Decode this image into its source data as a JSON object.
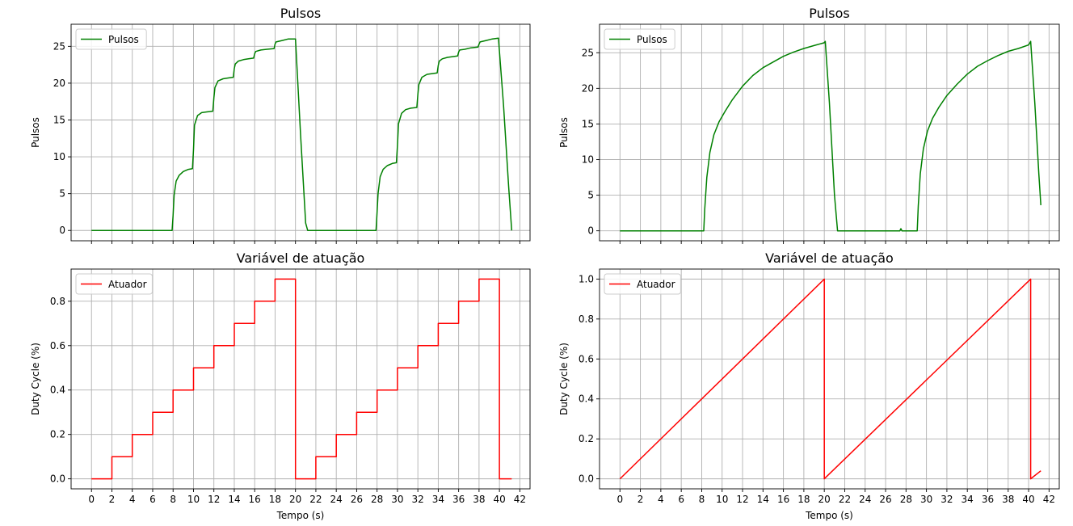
{
  "chart_data": [
    {
      "type": "line",
      "title": "Pulsos",
      "xlabel": "",
      "ylabel": "Pulsos",
      "xlim": [
        -2,
        43
      ],
      "ylim": [
        -1.4,
        28
      ],
      "xticks": [
        0,
        2,
        4,
        6,
        8,
        10,
        12,
        14,
        16,
        18,
        20,
        22,
        24,
        26,
        28,
        30,
        32,
        34,
        36,
        38,
        40,
        42
      ],
      "yticks": [
        0,
        5,
        10,
        15,
        20,
        25
      ],
      "show_xtick_labels": false,
      "grid": true,
      "legend": "upper-left",
      "series": [
        {
          "name": "Pulsos",
          "color": "#008000",
          "x": [
            0,
            7.9,
            8.0,
            8.1,
            8.3,
            8.6,
            9.0,
            9.5,
            9.9,
            10.0,
            10.1,
            10.4,
            10.8,
            11.3,
            11.9,
            12.0,
            12.1,
            12.4,
            12.9,
            13.4,
            13.9,
            14.0,
            14.1,
            14.4,
            14.9,
            15.4,
            15.9,
            16.0,
            16.1,
            16.6,
            17.2,
            17.9,
            18.0,
            18.1,
            18.7,
            19.3,
            20.0,
            20.5,
            21.0,
            21.2,
            27.9,
            28.0,
            28.1,
            28.3,
            28.6,
            29.0,
            29.5,
            29.9,
            30.0,
            30.1,
            30.4,
            30.8,
            31.3,
            31.9,
            32.0,
            32.1,
            32.4,
            32.9,
            33.4,
            33.9,
            34.0,
            34.1,
            34.4,
            34.9,
            35.4,
            35.9,
            36.0,
            36.1,
            36.6,
            37.2,
            37.9,
            38.0,
            38.1,
            38.7,
            39.3,
            39.9,
            40.4,
            40.9,
            41.2
          ],
          "y": [
            0,
            0,
            2.0,
            4.8,
            6.7,
            7.5,
            8.0,
            8.3,
            8.4,
            11.0,
            14.3,
            15.6,
            16.0,
            16.1,
            16.2,
            18.0,
            19.4,
            20.3,
            20.6,
            20.7,
            20.8,
            22.0,
            22.6,
            23.0,
            23.2,
            23.3,
            23.4,
            24.0,
            24.3,
            24.5,
            24.6,
            24.7,
            25.3,
            25.6,
            25.8,
            26.0,
            26.0,
            13.0,
            1.0,
            0,
            0,
            2.5,
            5.0,
            7.3,
            8.3,
            8.8,
            9.1,
            9.2,
            11.5,
            14.5,
            15.9,
            16.4,
            16.6,
            16.7,
            18.5,
            19.8,
            20.8,
            21.2,
            21.3,
            21.4,
            22.4,
            23.0,
            23.3,
            23.5,
            23.6,
            23.7,
            24.2,
            24.5,
            24.6,
            24.8,
            24.9,
            25.3,
            25.6,
            25.8,
            26.0,
            26.1,
            17.0,
            6.0,
            0
          ]
        }
      ]
    },
    {
      "type": "line",
      "title": "Pulsos",
      "xlabel": "",
      "ylabel": "Pulsos",
      "xlim": [
        -2,
        43
      ],
      "ylim": [
        -1.4,
        29
      ],
      "xticks": [
        0,
        2,
        4,
        6,
        8,
        10,
        12,
        14,
        16,
        18,
        20,
        22,
        24,
        26,
        28,
        30,
        32,
        34,
        36,
        38,
        40,
        42
      ],
      "yticks": [
        0,
        5,
        10,
        15,
        20,
        25
      ],
      "show_xtick_labels": false,
      "grid": true,
      "legend": "upper-left",
      "series": [
        {
          "name": "Pulsos",
          "color": "#008000",
          "x": [
            0,
            8.2,
            8.3,
            8.5,
            8.8,
            9.2,
            9.7,
            10.3,
            11.0,
            12.0,
            13.0,
            14.0,
            15.0,
            16.0,
            17.0,
            18.0,
            19.0,
            20.0,
            20.1,
            20.5,
            21.0,
            21.3,
            27.4,
            27.5,
            27.6,
            29.1,
            29.2,
            29.4,
            29.7,
            30.1,
            30.6,
            31.2,
            32.0,
            33.0,
            34.0,
            35.0,
            36.0,
            37.0,
            38.0,
            39.0,
            40.0,
            40.2,
            40.6,
            41.0,
            41.2
          ],
          "y": [
            0,
            0,
            3.0,
            7.5,
            11.0,
            13.5,
            15.3,
            16.8,
            18.4,
            20.3,
            21.8,
            22.9,
            23.7,
            24.5,
            25.1,
            25.6,
            26.0,
            26.4,
            26.6,
            18.0,
            5.0,
            0,
            0,
            0.3,
            0,
            0,
            3.5,
            8.0,
            11.5,
            14.0,
            15.8,
            17.3,
            19.0,
            20.6,
            22.0,
            23.1,
            23.9,
            24.6,
            25.2,
            25.6,
            26.1,
            26.6,
            18.0,
            8.0,
            3.6
          ]
        }
      ]
    },
    {
      "type": "line",
      "title": "Variável de atuação",
      "xlabel": "Tempo (s)",
      "ylabel": "Duty Cycle (%)",
      "xlim": [
        -2,
        43
      ],
      "ylim": [
        -0.045,
        0.945
      ],
      "xticks": [
        0,
        2,
        4,
        6,
        8,
        10,
        12,
        14,
        16,
        18,
        20,
        22,
        24,
        26,
        28,
        30,
        32,
        34,
        36,
        38,
        40,
        42
      ],
      "yticks": [
        0.0,
        0.2,
        0.4,
        0.6,
        0.8
      ],
      "ytick_labels": [
        "0.0",
        "0.2",
        "0.4",
        "0.6",
        "0.8"
      ],
      "xtick_labels": [
        "0",
        "2",
        "4",
        "6",
        "8",
        "10",
        "12",
        "14",
        "16",
        "18",
        "20",
        "22",
        "24",
        "26",
        "28",
        "30",
        "32",
        "34",
        "36",
        "38",
        "40",
        "42"
      ],
      "show_xtick_labels": true,
      "grid": true,
      "legend": "upper-left",
      "series": [
        {
          "name": "Atuador",
          "color": "#ff0000",
          "x": [
            0,
            2,
            2,
            4,
            4,
            6,
            6,
            8,
            8,
            10,
            10,
            12,
            12,
            14,
            14,
            16,
            16,
            18,
            18,
            20,
            20,
            22,
            22,
            24,
            24,
            26,
            26,
            28,
            28,
            30,
            30,
            32,
            32,
            34,
            34,
            36,
            36,
            38,
            38,
            40,
            40,
            41.2
          ],
          "y": [
            0,
            0,
            0.1,
            0.1,
            0.2,
            0.2,
            0.3,
            0.3,
            0.4,
            0.4,
            0.5,
            0.5,
            0.6,
            0.6,
            0.7,
            0.7,
            0.8,
            0.8,
            0.9,
            0.9,
            0,
            0,
            0.1,
            0.1,
            0.2,
            0.2,
            0.3,
            0.3,
            0.4,
            0.4,
            0.5,
            0.5,
            0.6,
            0.6,
            0.7,
            0.7,
            0.8,
            0.8,
            0.9,
            0.9,
            0,
            0
          ]
        }
      ]
    },
    {
      "type": "line",
      "title": "Variável de atuação",
      "xlabel": "Tempo (s)",
      "ylabel": "Duty Cycle (%)",
      "xlim": [
        -2,
        43
      ],
      "ylim": [
        -0.05,
        1.05
      ],
      "xticks": [
        0,
        2,
        4,
        6,
        8,
        10,
        12,
        14,
        16,
        18,
        20,
        22,
        24,
        26,
        28,
        30,
        32,
        34,
        36,
        38,
        40,
        42
      ],
      "yticks": [
        0.0,
        0.2,
        0.4,
        0.6,
        0.8,
        1.0
      ],
      "ytick_labels": [
        "0.0",
        "0.2",
        "0.4",
        "0.6",
        "0.8",
        "1.0"
      ],
      "xtick_labels": [
        "0",
        "2",
        "4",
        "6",
        "8",
        "10",
        "12",
        "14",
        "16",
        "18",
        "20",
        "22",
        "24",
        "26",
        "28",
        "30",
        "32",
        "34",
        "36",
        "38",
        "40",
        "42"
      ],
      "show_xtick_labels": true,
      "grid": true,
      "legend": "upper-left",
      "series": [
        {
          "name": "Atuador",
          "color": "#ff0000",
          "x": [
            0,
            20,
            20,
            40.2,
            40.2,
            41.2
          ],
          "y": [
            0,
            1.0,
            0,
            1.0,
            0,
            0.04
          ]
        }
      ]
    }
  ]
}
